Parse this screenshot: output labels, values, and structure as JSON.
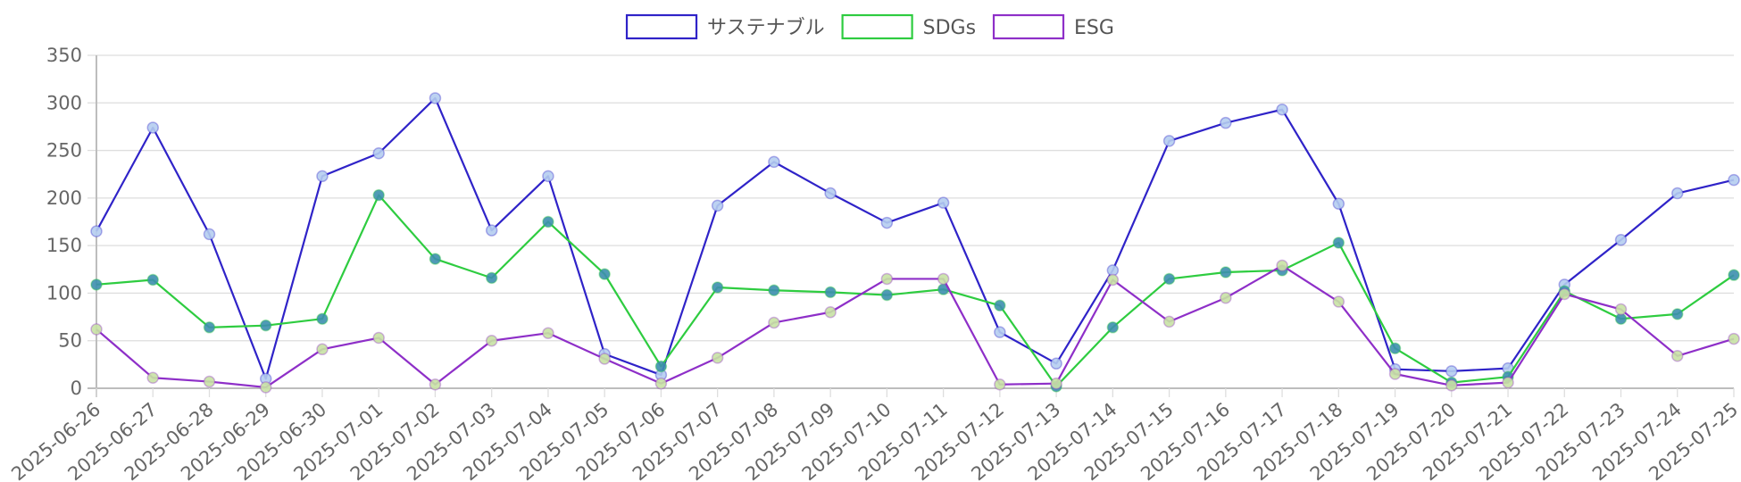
{
  "chart_data": {
    "type": "line",
    "title": "",
    "xlabel": "",
    "ylabel": "",
    "ylim": [
      0,
      350
    ],
    "yticks": [
      0,
      50,
      100,
      150,
      200,
      250,
      300,
      350
    ],
    "grid": true,
    "legend_position": "top-center",
    "categories": [
      "2025-06-26",
      "2025-06-27",
      "2025-06-28",
      "2025-06-29",
      "2025-06-30",
      "2025-07-01",
      "2025-07-02",
      "2025-07-03",
      "2025-07-04",
      "2025-07-05",
      "2025-07-06",
      "2025-07-07",
      "2025-07-08",
      "2025-07-09",
      "2025-07-10",
      "2025-07-11",
      "2025-07-12",
      "2025-07-13",
      "2025-07-14",
      "2025-07-15",
      "2025-07-16",
      "2025-07-17",
      "2025-07-18",
      "2025-07-19",
      "2025-07-20",
      "2025-07-21",
      "2025-07-22",
      "2025-07-23",
      "2025-07-24",
      "2025-07-25"
    ],
    "series": [
      {
        "name": "サステナブル",
        "color": "#2f23c8",
        "marker_color": "#b5cdf0",
        "values": [
          165,
          274,
          162,
          10,
          223,
          247,
          305,
          166,
          223,
          36,
          14,
          192,
          238,
          205,
          174,
          195,
          59,
          26,
          124,
          260,
          279,
          293,
          194,
          20,
          18,
          21,
          109,
          156,
          205,
          219
        ]
      },
      {
        "name": "SDGs",
        "color": "#2ecc40",
        "marker_color": "#3d8fae",
        "values": [
          109,
          114,
          64,
          66,
          73,
          203,
          136,
          116,
          175,
          120,
          23,
          106,
          103,
          101,
          98,
          104,
          87,
          2,
          64,
          115,
          122,
          124,
          153,
          42,
          6,
          12,
          102,
          73,
          78,
          119
        ]
      },
      {
        "name": "ESG",
        "color": "#8e2fc8",
        "marker_color": "#c8e2a4",
        "values": [
          62,
          11,
          7,
          1,
          41,
          53,
          4,
          50,
          58,
          31,
          5,
          32,
          69,
          80,
          115,
          115,
          4,
          5,
          114,
          70,
          95,
          129,
          91,
          15,
          3,
          6,
          99,
          83,
          34,
          52
        ]
      }
    ]
  }
}
